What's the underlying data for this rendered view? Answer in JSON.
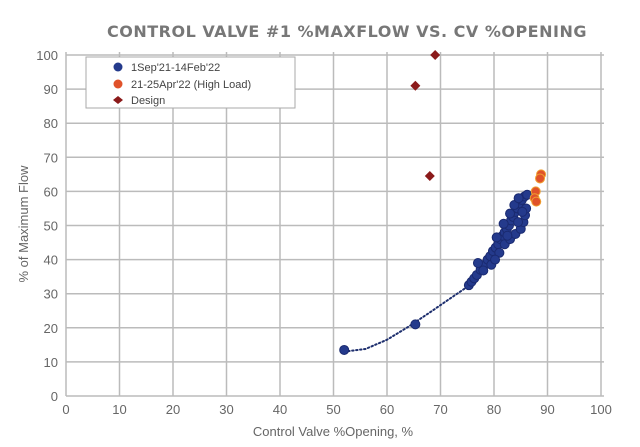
{
  "chart_data": {
    "type": "scatter",
    "title": "CONTROL VALVE #1 %MAXFLOW VS. CV %OPENING",
    "xlabel": "Control Valve %Opening, %",
    "ylabel": "% of Maximum Flow",
    "xlim": [
      0,
      100
    ],
    "ylim": [
      0,
      100
    ],
    "xticks": [
      "0",
      "10",
      "20",
      "30",
      "40",
      "50",
      "60",
      "70",
      "80",
      "90",
      "100"
    ],
    "yticks": [
      "0",
      "10",
      "20",
      "30",
      "40",
      "50",
      "60",
      "70",
      "80",
      "90",
      "100"
    ],
    "grid": true,
    "legend_placement": "top-left",
    "series": [
      {
        "name": "1Sep'21-14Feb'22",
        "marker": "circle",
        "color": "#243a8c",
        "points": [
          [
            52,
            13.5
          ],
          [
            65.3,
            21
          ],
          [
            75.3,
            32.5
          ],
          [
            75.8,
            33.5
          ],
          [
            76.3,
            34.5
          ],
          [
            76.8,
            35.5
          ],
          [
            77.5,
            37
          ],
          [
            78.2,
            38.5
          ],
          [
            78.8,
            40
          ],
          [
            79.3,
            41
          ],
          [
            79.8,
            42.5
          ],
          [
            80.3,
            43.5
          ],
          [
            80.8,
            44.5
          ],
          [
            81.2,
            46
          ],
          [
            81.6,
            47
          ],
          [
            82,
            48
          ],
          [
            82.4,
            49
          ],
          [
            82.8,
            50
          ],
          [
            83.2,
            51.5
          ],
          [
            83.6,
            52.5
          ],
          [
            84,
            54
          ],
          [
            84.4,
            55
          ],
          [
            84.8,
            56.5
          ],
          [
            85.2,
            57.5
          ],
          [
            85.7,
            58.5
          ],
          [
            86.2,
            59
          ],
          [
            81,
            42
          ],
          [
            82,
            44.5
          ],
          [
            83,
            46
          ],
          [
            84,
            47.5
          ],
          [
            85,
            49
          ],
          [
            85.5,
            51
          ],
          [
            85.8,
            53
          ],
          [
            86,
            55
          ],
          [
            80.5,
            46.5
          ],
          [
            81.8,
            50.5
          ],
          [
            83,
            53.5
          ],
          [
            83.8,
            56
          ],
          [
            84.6,
            58
          ],
          [
            82.5,
            47
          ],
          [
            84.5,
            51
          ],
          [
            85.3,
            54
          ],
          [
            79.5,
            38.5
          ],
          [
            80.2,
            40
          ],
          [
            78,
            36.8
          ],
          [
            77,
            39
          ]
        ]
      },
      {
        "name": "21-25Apr'22 (High Load)",
        "marker": "circle",
        "color": "#e0522a",
        "points": [
          [
            88.8,
            65
          ],
          [
            88.6,
            63.8
          ],
          [
            87.8,
            60
          ],
          [
            87.6,
            58
          ],
          [
            87.9,
            57
          ]
        ]
      },
      {
        "name": "Design",
        "marker": "diamond",
        "color": "#8b1a1a",
        "points": [
          [
            69,
            100
          ],
          [
            65.3,
            91
          ],
          [
            68,
            64.5
          ]
        ]
      }
    ],
    "trendline": {
      "style": "dotted",
      "color": "#1e2f6e",
      "points": [
        [
          52,
          13
        ],
        [
          56,
          13.8
        ],
        [
          60,
          16.5
        ],
        [
          64,
          20.3
        ],
        [
          68,
          24.5
        ],
        [
          72,
          28.8
        ],
        [
          75,
          32
        ]
      ]
    }
  }
}
